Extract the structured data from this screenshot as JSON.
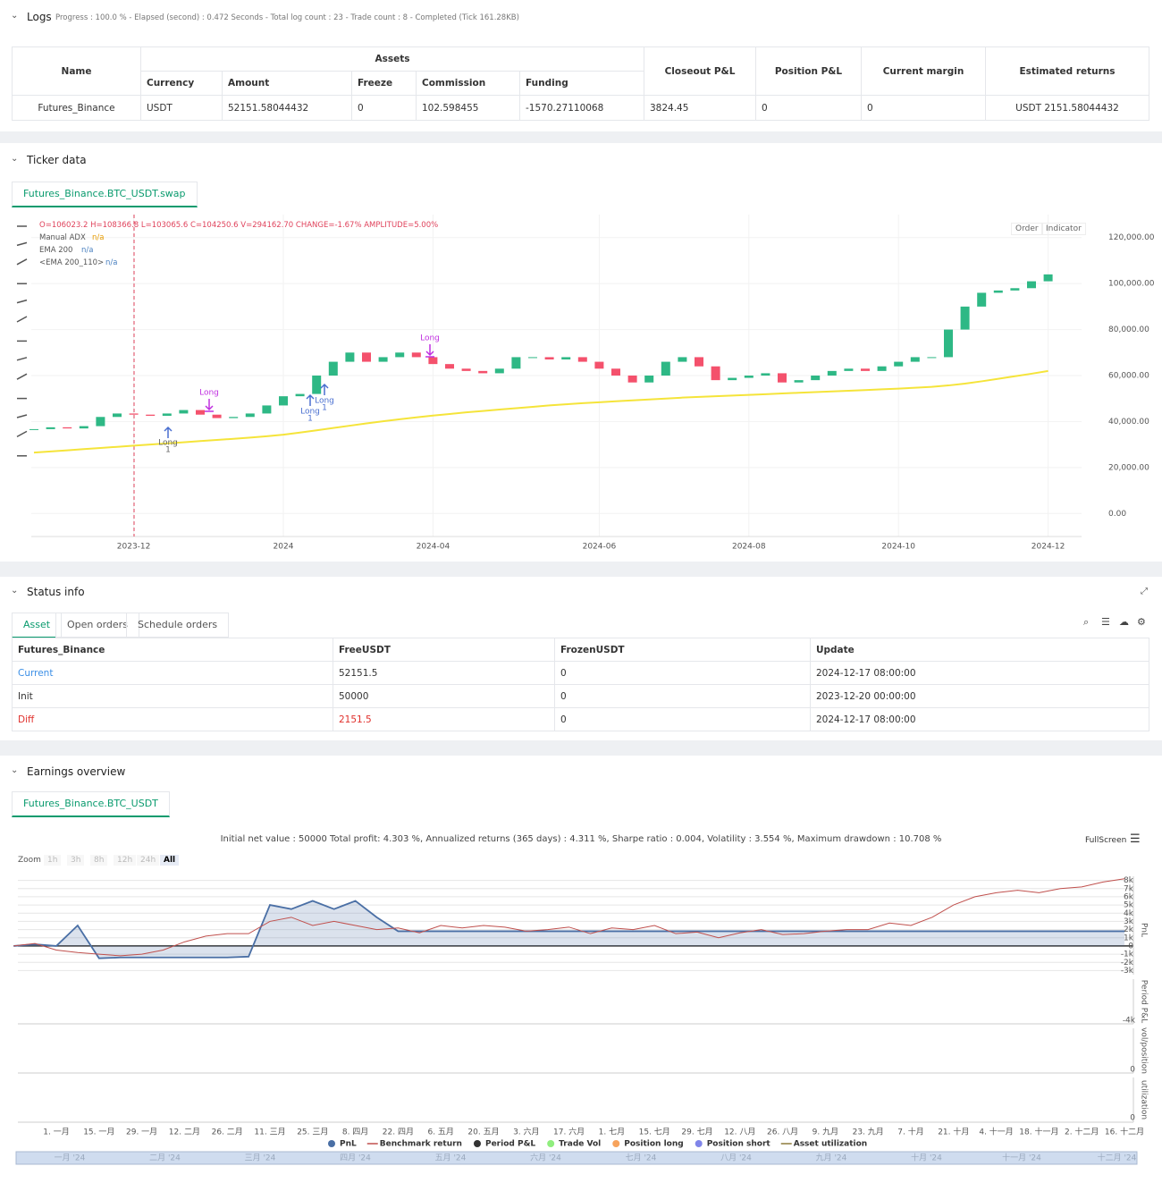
{
  "logs": {
    "title": "Logs",
    "summary": "Progress : 100.0 % - Elapsed (second) : 0.472  Seconds - Total log count : 23 - Trade count : 8 - Completed (Tick 161.28KB)",
    "table": {
      "headers": [
        "Name",
        "Assets",
        "Closeout P&L",
        "Position P&L",
        "Current margin",
        "Estimated returns"
      ],
      "subheaders": [
        "Currency",
        "Amount",
        "Freeze",
        "Commission",
        "Funding"
      ],
      "row": [
        "Futures_Binance",
        "USDT",
        "52151.58044432",
        "0",
        "102.598455",
        "-1570.27110068",
        "3824.45",
        "0",
        "0",
        "USDT 2151.58044432"
      ]
    }
  },
  "ticker": {
    "title": "Ticker data",
    "tab": "Futures_Binance.BTC_USDT.swap",
    "ohlc": "O=106023.2 H=108366.8 L=103065.6 C=104250.6 V=294162.70 CHANGE=-1.67% AMPLITUDE=5.00%",
    "indicators": [
      {
        "name": "Manual ADX",
        "value": "n/a"
      },
      {
        "name": "EMA 200",
        "value": "n/a"
      },
      {
        "name": "<EMA 200_110>",
        "value": "n/a"
      }
    ],
    "buttons": [
      "Order",
      "Indicator"
    ],
    "annotations": [
      "Long",
      "Long",
      "Long",
      "1",
      "Long",
      "1",
      "Long",
      "1"
    ]
  },
  "status": {
    "title": "Status info",
    "tabs": [
      "Asset",
      "Open orders",
      "Schedule orders"
    ],
    "headers": [
      "Futures_Binance",
      "FreeUSDT",
      "FrozenUSDT",
      "Update"
    ],
    "rows": [
      [
        "Current",
        "52151.5",
        "0",
        "2024-12-17 08:00:00"
      ],
      [
        "Init",
        "50000",
        "0",
        "2023-12-20 00:00:00"
      ],
      [
        "Diff",
        "2151.5",
        "0",
        "2024-12-17 08:00:00"
      ]
    ]
  },
  "earnings": {
    "title": "Earnings overview",
    "tab": "Futures_Binance.BTC_USDT",
    "summary": "Initial net value : 50000 Total profit: 4.303 %, Annualized returns (365 days) : 4.311 %, Sharpe ratio : 0.004, Volatility : 3.554 %, Maximum drawdown : 10.708 %",
    "fullscreen": "FullScreen",
    "zoom_label": "Zoom",
    "zoom": [
      "1h",
      "3h",
      "8h",
      "12h",
      "24h",
      "All"
    ],
    "panels": [
      "PnL",
      "Period P&L",
      "vol/position",
      "utilization"
    ],
    "panel_ticks": [
      "-4k",
      "0",
      "0"
    ],
    "legend": [
      {
        "name": "PnL",
        "color": "#4a6fa5"
      },
      {
        "name": "Benchmark return",
        "color": "#c0504d"
      },
      {
        "name": "Period P&L",
        "color": "#333333"
      },
      {
        "name": "Trade Vol",
        "color": "#90ee7e"
      },
      {
        "name": "Position long",
        "color": "#f7a35c"
      },
      {
        "name": "Position short",
        "color": "#8085e9"
      },
      {
        "name": "Asset utilization",
        "color": "#8d7a3a"
      }
    ],
    "navigator": [
      "一月 '24",
      "二月 '24",
      "三月 '24",
      "四月 '24",
      "五月 '24",
      "六月 '24",
      "七月 '24",
      "八月 '24",
      "九月 '24",
      "十月 '24",
      "十一月 '24",
      "十二月 '24"
    ]
  },
  "chart_data": [
    {
      "type": "candlestick",
      "up_color": "#2eb885",
      "down_color": "#f4516c",
      "categories": [
        null,
        null,
        null,
        null,
        null,
        null,
        "2023-12",
        null,
        null,
        null,
        null,
        null,
        null,
        null,
        null,
        "2024",
        null,
        null,
        null,
        null,
        null,
        null,
        null,
        null,
        "2024-04",
        null,
        null,
        null,
        null,
        null,
        null,
        null,
        null,
        null,
        "2024-06",
        null,
        null,
        null,
        null,
        null,
        null,
        null,
        null,
        "2024-08",
        null,
        null,
        null,
        null,
        null,
        null,
        null,
        null,
        "2024-10",
        null,
        null,
        null,
        null,
        null,
        null,
        null,
        null,
        "2024-12"
      ],
      "values": [
        36700,
        37500,
        37000,
        38000,
        42000,
        43500,
        43000,
        42500,
        43500,
        45000,
        43000,
        41500,
        42000,
        43500,
        47000,
        51000,
        52000,
        60000,
        66000,
        70000,
        66000,
        68000,
        70000,
        68000,
        65000,
        63000,
        62000,
        61000,
        63000,
        68000,
        68000,
        67000,
        68000,
        66000,
        63000,
        60000,
        57000,
        60000,
        66000,
        68000,
        64000,
        58000,
        59000,
        60000,
        61000,
        57000,
        58000,
        60000,
        62000,
        63000,
        62000,
        64000,
        66000,
        68000,
        68000,
        80000,
        90000,
        96000,
        97000,
        98000,
        101000,
        104000
      ],
      "series": [
        {
          "name": "EMA 200",
          "color": "#f5e43a",
          "values": [
            26500,
            27000,
            27500,
            28000,
            28500,
            29000,
            29500,
            30000,
            30500,
            31000,
            31500,
            32000,
            32500,
            33000,
            33600,
            34300,
            35200,
            36200,
            37200,
            38200,
            39200,
            40100,
            41000,
            41800,
            42600,
            43300,
            44000,
            44600,
            45200,
            45800,
            46400,
            47000,
            47500,
            48000,
            48400,
            48800,
            49200,
            49600,
            50000,
            50400,
            50700,
            51000,
            51300,
            51600,
            51900,
            52200,
            52500,
            52800,
            53100,
            53400,
            53700,
            54000,
            54300,
            54700,
            55100,
            55700,
            56500,
            57500,
            58600,
            59700,
            60800,
            62000
          ]
        }
      ],
      "ylim": [
        -10000,
        130000
      ],
      "yticks": [
        {
          "value": 120000,
          "label": "120,000.00"
        },
        {
          "value": 100000,
          "label": "100,000.00"
        },
        {
          "value": 80000,
          "label": "80,000.00"
        },
        {
          "value": 60000,
          "label": "60,000.00"
        },
        {
          "value": 40000,
          "label": "40,000.00"
        },
        {
          "value": 20000,
          "label": "20,000.00"
        },
        {
          "value": 0,
          "label": "0.00"
        }
      ],
      "grid": true
    },
    {
      "type": "line",
      "categories": [
        null,
        null,
        "1. 一月",
        null,
        "15. 一月",
        null,
        "29. 一月",
        null,
        "12. 二月",
        null,
        "26. 二月",
        null,
        "11. 三月",
        null,
        "25. 三月",
        null,
        "8. 四月",
        null,
        "22. 四月",
        null,
        "6. 五月",
        null,
        "20. 五月",
        null,
        "3. 六月",
        null,
        "17. 六月",
        null,
        "1. 七月",
        null,
        "15. 七月",
        null,
        "29. 七月",
        null,
        "12. 八月",
        null,
        "26. 八月",
        null,
        "9. 九月",
        null,
        "23. 九月",
        null,
        "7. 十月",
        null,
        "21. 十月",
        null,
        "4. 十一月",
        null,
        "18. 十一月",
        null,
        "2. 十二月",
        null,
        "16. 十二月"
      ],
      "series": [
        {
          "name": "PnL",
          "color": "#4a6fa5",
          "values": [
            0,
            200,
            0,
            2500,
            -1500,
            -1400,
            -1400,
            -1400,
            -1400,
            -1400,
            -1400,
            -1300,
            5000,
            4500,
            5500,
            4500,
            5500,
            3500,
            1800,
            1800,
            1800,
            1800,
            1800,
            1800,
            1800,
            1800,
            1800,
            1800,
            1800,
            1800,
            1800,
            1800,
            1800,
            1800,
            1800,
            1800,
            1800,
            1800,
            1800,
            1800,
            1800,
            1800,
            1800,
            1800,
            1800,
            1800,
            1800,
            1800,
            1800,
            1800,
            1800,
            1800,
            1800
          ]
        },
        {
          "name": "Benchmark return",
          "color": "#c0504d",
          "values": [
            0,
            300,
            -500,
            -800,
            -1000,
            -1200,
            -1000,
            -500,
            500,
            1200,
            1500,
            1500,
            3000,
            3500,
            2500,
            3000,
            2500,
            2000,
            2200,
            1600,
            2500,
            2200,
            2500,
            2300,
            1800,
            2000,
            2300,
            1500,
            2200,
            2000,
            2500,
            1500,
            1700,
            1000,
            1600,
            2000,
            1400,
            1500,
            1800,
            2000,
            2000,
            2800,
            2500,
            3500,
            5000,
            6000,
            6500,
            6800,
            6500,
            7000,
            7200,
            7800,
            8200
          ]
        }
      ],
      "ylim": [
        -3500,
        8500
      ],
      "yticks": [
        {
          "value": 8000,
          "label": "8k"
        },
        {
          "value": 7000,
          "label": "7k"
        },
        {
          "value": 6000,
          "label": "6k"
        },
        {
          "value": 5000,
          "label": "5k"
        },
        {
          "value": 4000,
          "label": "4k"
        },
        {
          "value": 3000,
          "label": "3k"
        },
        {
          "value": 2000,
          "label": "2k"
        },
        {
          "value": 1000,
          "label": "1k"
        },
        0,
        {
          "value": -1000,
          "label": "-1k"
        },
        {
          "value": -2000,
          "label": "-2k"
        },
        {
          "value": -3000,
          "label": "-3k"
        }
      ],
      "grid": true
    }
  ]
}
